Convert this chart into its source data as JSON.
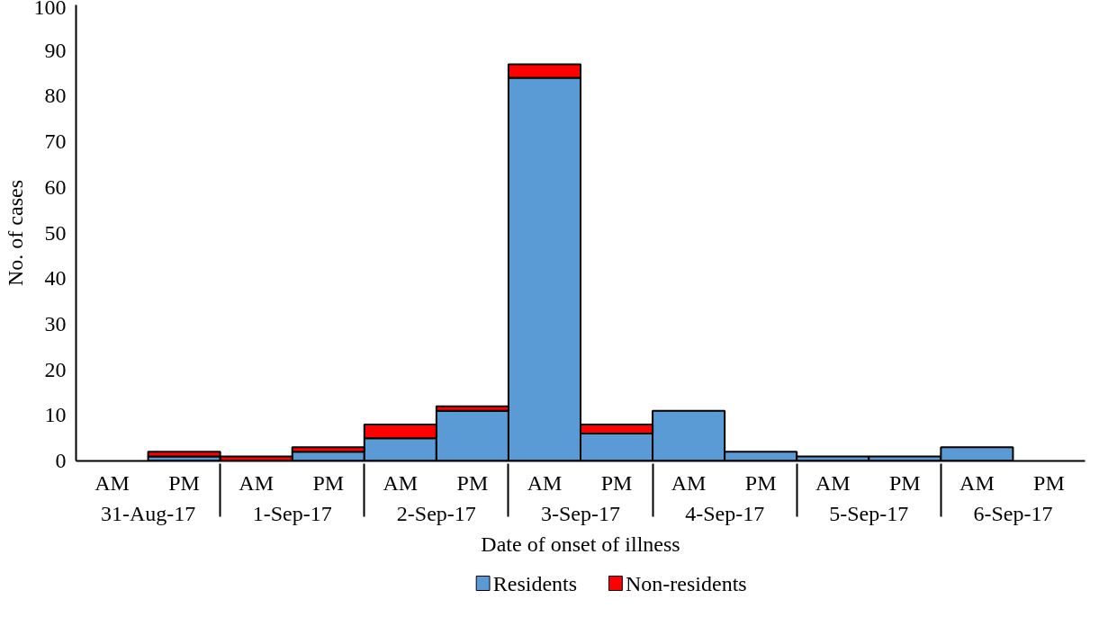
{
  "chart_data": {
    "type": "bar",
    "stacked": true,
    "xlabel": "Date of onset of illness",
    "ylabel": "No. of cases",
    "categories": [
      "AM",
      "PM",
      "AM",
      "PM",
      "AM",
      "PM",
      "AM",
      "PM",
      "AM",
      "PM",
      "AM",
      "PM",
      "AM",
      "PM"
    ],
    "annotations": [
      "31-Aug-17",
      "1-Sep-17",
      "2-Sep-17",
      "3-Sep-17",
      "4-Sep-17",
      "5-Sep-17",
      "6-Sep-17"
    ],
    "series": [
      {
        "name": "Residents",
        "color": "#5b9bd5",
        "values": [
          0,
          1,
          0,
          2,
          5,
          11,
          84,
          6,
          11,
          2,
          1,
          1,
          3,
          0
        ]
      },
      {
        "name": "Non-residents",
        "color": "#ff0000",
        "values": [
          0,
          1,
          1,
          1,
          3,
          1,
          3,
          2,
          0,
          0,
          0,
          0,
          0,
          0
        ]
      }
    ],
    "ylim": [
      0,
      100
    ],
    "yticks": [
      0,
      10,
      20,
      30,
      40,
      50,
      60,
      70,
      80,
      90,
      100
    ],
    "grid": false,
    "legend": "bottom"
  }
}
